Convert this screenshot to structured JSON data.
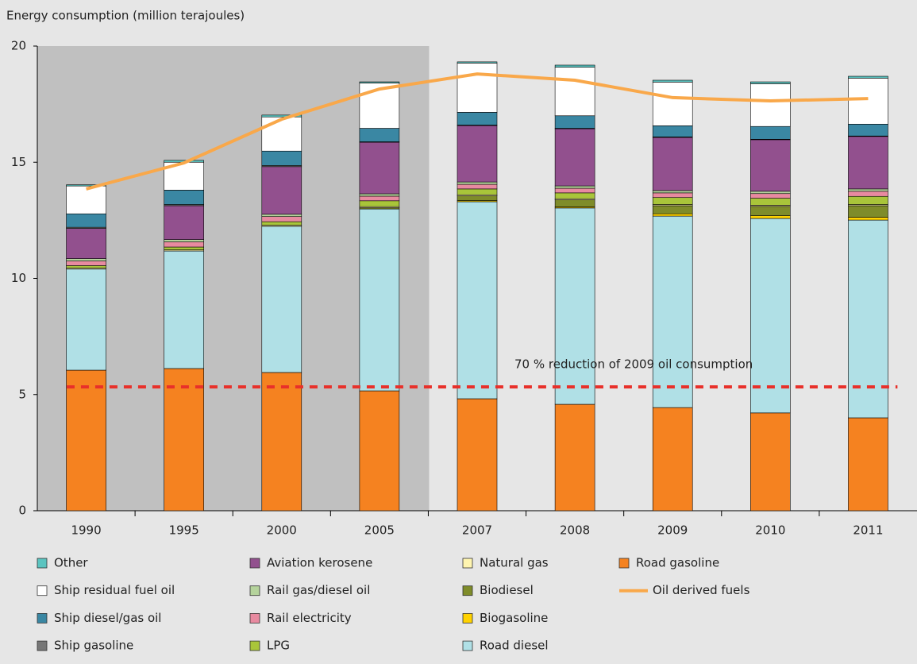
{
  "chart_data": {
    "type": "bar",
    "stacked": true,
    "y_label": "Energy consumption (million terajoules)",
    "categories": [
      "1990",
      "1995",
      "2000",
      "2005",
      "2007",
      "2008",
      "2009",
      "2010",
      "2011"
    ],
    "shaded": [
      true,
      true,
      true,
      true,
      false,
      false,
      false,
      false,
      false
    ],
    "shade_color": "#c0c0c0",
    "ylim": [
      0,
      20
    ],
    "yticks": [
      0,
      5,
      10,
      15,
      20
    ],
    "series": [
      {
        "name": "Other",
        "color": "#5bc4c0",
        "values": [
          0.05,
          0.08,
          0.08,
          0.05,
          0.05,
          0.09,
          0.08,
          0.08,
          0.08
        ]
      },
      {
        "name": "Ship residual fuel oil",
        "color": "#ffffff",
        "values": [
          1.2,
          1.2,
          1.47,
          1.95,
          2.12,
          2.09,
          1.88,
          1.84,
          1.98
        ]
      },
      {
        "name": "Ship diesel/gas oil",
        "color": "#3a87a3",
        "values": [
          0.58,
          0.62,
          0.62,
          0.58,
          0.55,
          0.54,
          0.48,
          0.55,
          0.51
        ]
      },
      {
        "name": "Ship gasoline",
        "color": "#777777",
        "values": [
          0.05,
          0.05,
          0.05,
          0.02,
          0.02,
          0.02,
          0.02,
          0.02,
          0.02
        ]
      },
      {
        "name": "Aviation kerosene",
        "color": "#92508e",
        "values": [
          1.3,
          1.46,
          2.05,
          2.22,
          2.43,
          2.46,
          2.29,
          2.22,
          2.26
        ]
      },
      {
        "name": "Rail gas/diesel oil",
        "color": "#b5d39c",
        "values": [
          0.1,
          0.1,
          0.1,
          0.1,
          0.1,
          0.1,
          0.1,
          0.1,
          0.1
        ]
      },
      {
        "name": "Rail electricity",
        "color": "#e88aa0",
        "values": [
          0.2,
          0.22,
          0.22,
          0.2,
          0.2,
          0.2,
          0.2,
          0.2,
          0.22
        ]
      },
      {
        "name": "LPG",
        "color": "#a9c53a",
        "values": [
          0.1,
          0.12,
          0.15,
          0.25,
          0.25,
          0.25,
          0.3,
          0.3,
          0.35
        ]
      },
      {
        "name": "Natural gas",
        "color": "#fff5b0",
        "values": [
          0.05,
          0.05,
          0.05,
          0.05,
          0.05,
          0.05,
          0.05,
          0.05,
          0.05
        ]
      },
      {
        "name": "Biodiesel",
        "color": "#7f8c2a",
        "values": [
          0,
          0,
          0,
          0.05,
          0.2,
          0.3,
          0.35,
          0.4,
          0.5
        ]
      },
      {
        "name": "Biogasoline",
        "color": "#ffd200",
        "values": [
          0,
          0,
          0,
          0,
          0.05,
          0.05,
          0.1,
          0.12,
          0.12
        ]
      },
      {
        "name": "Road diesel",
        "color": "#b0e0e6",
        "values": [
          4.35,
          5.06,
          6.29,
          7.83,
          8.48,
          8.45,
          8.24,
          8.37,
          8.51
        ]
      },
      {
        "name": "Road gasoline",
        "color": "#f58220",
        "values": [
          6.05,
          6.12,
          5.95,
          5.16,
          4.82,
          4.58,
          4.44,
          4.21,
          4.0
        ]
      },
      {
        "name": "Oil derived fuels",
        "type": "line",
        "color": "#f9a84a",
        "values": [
          13.85,
          14.97,
          16.85,
          18.15,
          18.8,
          18.53,
          17.78,
          17.64,
          17.74
        ]
      }
    ],
    "reference_line": {
      "value": 5.33,
      "label": "70 % reduction of 2009 oil consumption",
      "color": "#e8302a"
    }
  }
}
